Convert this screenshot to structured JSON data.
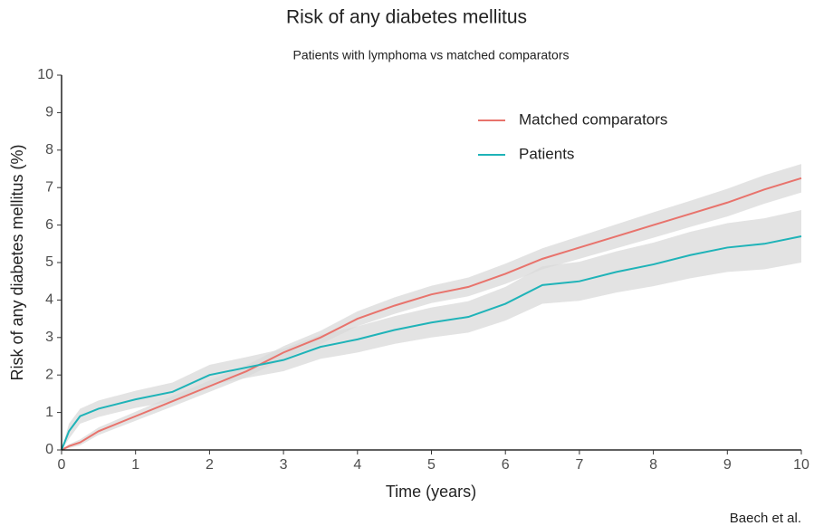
{
  "chart_data": {
    "type": "line",
    "title": "Risk of any diabetes mellitus",
    "subtitle": "Patients with lymphoma vs matched comparators",
    "x_label": "Time (years)",
    "y_label": "Risk of any diabetes mellitus (%)",
    "caption": "Baech et al.",
    "x": [
      0,
      0.1,
      0.25,
      0.5,
      1,
      1.5,
      2,
      2.5,
      3,
      3.5,
      4,
      4.5,
      5,
      5.5,
      6,
      6.5,
      7,
      7.5,
      8,
      8.5,
      9,
      9.5,
      10
    ],
    "series": [
      {
        "name": "Matched comparators",
        "color": "#e8736c",
        "band_color": "#d9d9d9",
        "values": [
          0,
          0.1,
          0.2,
          0.5,
          0.9,
          1.3,
          1.7,
          2.1,
          2.6,
          3.0,
          3.5,
          3.85,
          4.15,
          4.35,
          4.7,
          5.1,
          5.4,
          5.7,
          6.0,
          6.3,
          6.6,
          6.95,
          7.25
        ],
        "lower": [
          0,
          0.05,
          0.12,
          0.4,
          0.78,
          1.16,
          1.55,
          1.94,
          2.43,
          2.82,
          3.3,
          3.63,
          3.92,
          4.1,
          4.43,
          4.82,
          5.1,
          5.38,
          5.66,
          5.95,
          6.23,
          6.57,
          6.87
        ],
        "upper": [
          0,
          0.15,
          0.28,
          0.6,
          1.02,
          1.44,
          1.85,
          2.26,
          2.77,
          3.18,
          3.7,
          4.07,
          4.38,
          4.6,
          4.97,
          5.38,
          5.7,
          6.02,
          6.34,
          6.65,
          6.97,
          7.33,
          7.63
        ]
      },
      {
        "name": "Patients",
        "color": "#1fb3b8",
        "band_color": "#d9d9d9",
        "values": [
          0,
          0.5,
          0.9,
          1.1,
          1.35,
          1.55,
          2.0,
          2.2,
          2.4,
          2.75,
          2.95,
          3.2,
          3.4,
          3.55,
          3.9,
          4.4,
          4.5,
          4.75,
          4.95,
          5.2,
          5.4,
          5.5,
          5.7
        ],
        "lower": [
          0,
          0.3,
          0.7,
          0.88,
          1.12,
          1.3,
          1.73,
          1.92,
          2.1,
          2.43,
          2.6,
          2.83,
          3.0,
          3.13,
          3.45,
          3.9,
          3.98,
          4.2,
          4.37,
          4.58,
          4.75,
          4.82,
          5.0
        ],
        "upper": [
          0,
          0.7,
          1.1,
          1.32,
          1.58,
          1.8,
          2.27,
          2.48,
          2.7,
          3.07,
          3.3,
          3.57,
          3.8,
          3.97,
          4.35,
          4.9,
          5.02,
          5.3,
          5.53,
          5.82,
          6.05,
          6.18,
          6.4
        ]
      }
    ],
    "xlim": [
      0,
      10
    ],
    "xticks": [
      0,
      1,
      2,
      3,
      4,
      5,
      6,
      7,
      8,
      9,
      10
    ],
    "ylim": [
      0,
      10
    ],
    "yticks": [
      0,
      1,
      2,
      3,
      4,
      5,
      6,
      7,
      8,
      9,
      10
    ],
    "grid": false,
    "legend": "top-right"
  }
}
